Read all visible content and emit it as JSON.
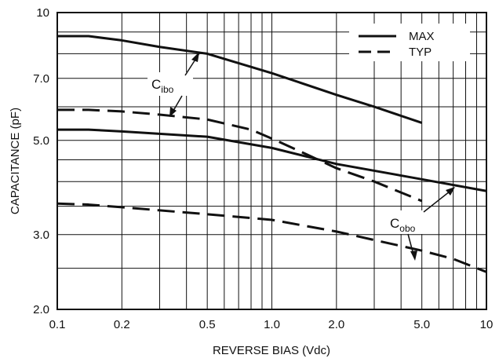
{
  "chart_data": {
    "type": "line",
    "xscale": "log",
    "yscale": "log",
    "xlim": [
      0.1,
      10
    ],
    "ylim": [
      2.0,
      10
    ],
    "xlabel": "REVERSE BIAS (Vdc)",
    "ylabel": "CAPACITANCE (pF)",
    "x_ticks": [
      {
        "value": 0.1,
        "label": "0.1"
      },
      {
        "value": 0.2,
        "label": "0.2"
      },
      {
        "value": 0.5,
        "label": "0.5"
      },
      {
        "value": 1.0,
        "label": "1.0"
      },
      {
        "value": 2.0,
        "label": "2.0"
      },
      {
        "value": 5.0,
        "label": "5.0"
      },
      {
        "value": 10,
        "label": "10"
      }
    ],
    "y_ticks": [
      {
        "value": 2.0,
        "label": "2.0"
      },
      {
        "value": 3.0,
        "label": "3.0"
      },
      {
        "value": 5.0,
        "label": "5.0"
      },
      {
        "value": 7.0,
        "label": "7.0"
      },
      {
        "value": 10,
        "label": "10"
      }
    ],
    "grid": true,
    "legend": {
      "position": "top-right",
      "entries": [
        {
          "label": "MAX",
          "style": "solid"
        },
        {
          "label": "TYP",
          "style": "dashed"
        }
      ]
    },
    "series": [
      {
        "style": "solid",
        "x": [
          0.1,
          0.14,
          0.2,
          0.3,
          0.5,
          1.0,
          2.0,
          3.0,
          5.0
        ],
        "y": [
          8.8,
          8.8,
          8.6,
          8.3,
          8.0,
          7.2,
          6.4,
          6.0,
          5.5
        ]
      },
      {
        "style": "dashed",
        "x": [
          0.1,
          0.14,
          0.2,
          0.3,
          0.5,
          0.8,
          1.0,
          1.5,
          2.0,
          3.0,
          5.0
        ],
        "y": [
          5.9,
          5.9,
          5.85,
          5.75,
          5.6,
          5.3,
          5.05,
          4.6,
          4.3,
          4.0,
          3.6
        ]
      },
      {
        "style": "solid",
        "x": [
          0.1,
          0.14,
          0.2,
          0.5,
          1.0,
          2.0,
          5.0,
          10
        ],
        "y": [
          5.3,
          5.3,
          5.25,
          5.1,
          4.8,
          4.4,
          4.05,
          3.8
        ]
      },
      {
        "style": "dashed",
        "x": [
          0.1,
          0.14,
          0.2,
          0.5,
          1.0,
          2.0,
          5.0,
          7.0,
          10
        ],
        "y": [
          3.55,
          3.53,
          3.48,
          3.35,
          3.25,
          3.05,
          2.75,
          2.63,
          2.45
        ]
      }
    ],
    "annotations": [
      {
        "main": "C",
        "sub": "ibo"
      },
      {
        "main": "C",
        "sub": "obo"
      }
    ]
  }
}
